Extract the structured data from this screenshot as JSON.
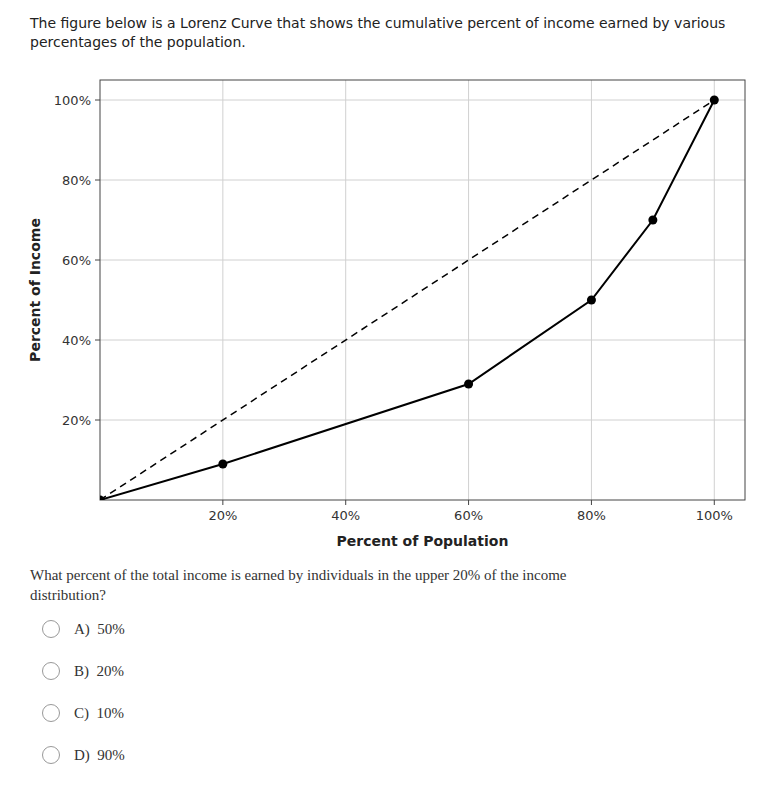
{
  "chart_data": {
    "type": "line",
    "title": "The figure below is a Lorenz Curve that shows the cumulative percent of income earned by various percentages of the population.",
    "xlabel": "Percent of Population",
    "ylabel": "Percent of Income",
    "series": [
      {
        "x": [
          0,
          100
        ],
        "values": [
          0,
          100
        ],
        "color": "#000000",
        "line_style": "dashed"
      },
      {
        "x": [
          0,
          20,
          60,
          80,
          90,
          100
        ],
        "values": [
          0,
          9,
          29,
          50,
          70,
          100
        ],
        "color": "#000000",
        "line_style": "solid",
        "marker": "circle"
      }
    ],
    "xlim": [
      0,
      105
    ],
    "ylim": [
      0,
      105
    ],
    "xticks": [
      {
        "value": 20,
        "label": "20%"
      },
      {
        "value": 40,
        "label": "40%"
      },
      {
        "value": 60,
        "label": "60%"
      },
      {
        "value": 80,
        "label": "80%"
      },
      {
        "value": 100,
        "label": "100%"
      }
    ],
    "yticks": [
      {
        "value": 20,
        "label": "20%"
      },
      {
        "value": 40,
        "label": "40%"
      },
      {
        "value": 60,
        "label": "60%"
      },
      {
        "value": 80,
        "label": "80%"
      },
      {
        "value": 100,
        "label": "100%"
      }
    ],
    "grid": true,
    "annotations": [
      "What percent of the total income is earned by individuals in the upper 20% of the income",
      "distribution?",
      "A)  50%",
      "B)  20%",
      "C)  10%",
      "D)  90%"
    ]
  }
}
